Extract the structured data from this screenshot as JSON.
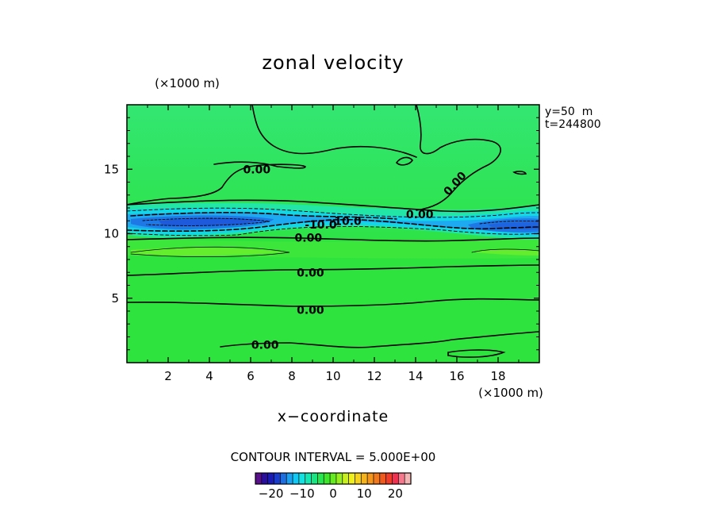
{
  "chart_data": {
    "type": "heatmap",
    "title": "zonal velocity",
    "xlabel": "x−coordinate",
    "x_unit": "(×1000 m)",
    "y_unit": "(×1000 m)",
    "xlim": [
      0,
      20
    ],
    "ylim": [
      0,
      20
    ],
    "x_ticks": [
      2,
      4,
      6,
      8,
      10,
      12,
      14,
      16,
      18
    ],
    "y_ticks": [
      5,
      10,
      15
    ],
    "info": [
      "y=50  m",
      "t=244800"
    ],
    "contour_interval_text": "CONTOUR INTERVAL = 5.000E+00",
    "colorbar": {
      "range": [
        -25,
        25
      ],
      "tick_labels": [
        {
          "value": -20,
          "text": "−20"
        },
        {
          "value": -10,
          "text": "−10"
        },
        {
          "value": 0,
          "text": "0"
        },
        {
          "value": 10,
          "text": "10"
        },
        {
          "value": 20,
          "text": "20"
        }
      ],
      "colors": [
        "#5a0f8c",
        "#2a0f9e",
        "#1a1ab4",
        "#1a3ccd",
        "#1e6ee0",
        "#1ea0f0",
        "#14c8f5",
        "#14e1e1",
        "#14e6b4",
        "#19e682",
        "#28e650",
        "#3ce628",
        "#64ec1e",
        "#96f01e",
        "#c8f01e",
        "#f0f01e",
        "#f5d21e",
        "#f5b41e",
        "#f5961e",
        "#f0781e",
        "#f05a1e",
        "#f03c28",
        "#f03250",
        "#f5788c",
        "#f5b4b4"
      ]
    },
    "contour_labels": [
      {
        "text": "0.00",
        "x": 6.3,
        "y": 15.0
      },
      {
        "text": "0.00",
        "x": 15.9,
        "y": 13.9,
        "rotate": -48
      },
      {
        "text": "0.00",
        "x": 14.2,
        "y": 11.5
      },
      {
        "text": "-10.0",
        "x": 9.4,
        "y": 10.7
      },
      {
        "text": "-10.0",
        "x": 10.6,
        "y": 11.0
      },
      {
        "text": "0.00",
        "x": 8.8,
        "y": 9.7
      },
      {
        "text": "0.00",
        "x": 8.9,
        "y": 7.0
      },
      {
        "text": "0.00",
        "x": 8.9,
        "y": 4.1
      },
      {
        "text": "0.00",
        "x": 6.7,
        "y": 1.4
      }
    ]
  }
}
